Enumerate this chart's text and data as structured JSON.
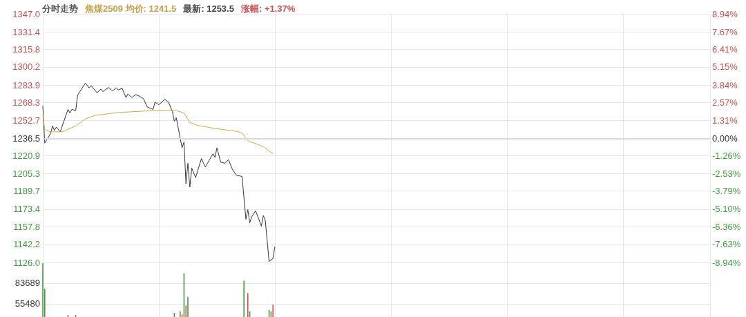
{
  "chart_data": [
    {
      "type": "line",
      "title": "分时走势",
      "annotations": [
        "焦煤2509 均价: 1241.5",
        "最新: 1253.5",
        "涨幅: +1.37%"
      ],
      "categories": [
        null,
        null,
        null,
        null,
        null,
        null,
        null,
        null,
        null,
        null,
        null,
        null,
        null,
        null,
        null,
        null,
        null,
        null,
        null,
        null,
        null,
        null,
        null,
        null,
        null,
        null,
        null,
        null,
        null,
        null,
        null,
        null,
        null,
        null,
        null,
        null,
        null,
        null,
        null,
        null,
        null,
        null,
        null,
        null,
        null,
        null,
        null,
        null,
        null,
        null,
        null,
        null,
        null,
        null,
        null,
        null,
        null,
        null,
        null,
        null,
        null,
        null,
        null,
        null,
        null,
        null,
        null,
        null,
        null,
        null,
        null,
        null,
        null,
        null,
        null,
        null,
        null,
        null,
        null,
        null,
        null,
        null,
        null,
        null,
        null,
        null,
        null,
        null,
        null,
        null,
        null,
        null,
        null,
        null,
        null,
        null,
        null,
        null,
        null,
        null,
        null,
        null,
        null,
        null,
        null,
        null,
        null,
        null,
        null,
        null,
        null,
        null,
        null,
        null,
        null,
        null,
        null,
        null,
        null,
        null,
        null,
        null,
        null,
        null,
        null,
        null,
        null,
        null,
        null,
        null,
        null,
        null,
        null,
        null,
        null,
        null,
        null,
        null,
        null,
        null,
        null,
        null,
        null,
        null,
        null,
        null,
        null,
        null,
        null,
        null,
        null,
        null,
        null,
        null,
        null,
        null,
        null,
        null,
        null,
        null,
        null,
        null,
        null,
        null,
        null,
        null,
        null,
        null,
        null,
        null,
        null,
        null,
        null,
        null,
        null,
        null,
        null,
        null,
        null,
        null,
        null,
        null,
        null,
        null,
        null,
        null,
        null,
        null,
        null,
        null,
        null,
        null,
        null,
        null,
        null,
        null,
        null,
        null,
        null,
        null,
        null,
        null,
        null,
        null,
        null,
        null,
        null,
        null,
        null,
        null,
        null,
        null,
        null,
        null,
        null,
        null,
        null,
        null,
        null,
        null,
        null,
        null,
        null,
        null,
        null,
        null,
        null,
        null,
        null,
        null,
        null,
        null,
        null,
        null,
        null,
        null,
        null,
        null,
        null,
        null,
        null,
        null,
        null,
        null,
        null,
        null,
        null,
        null,
        null,
        null,
        null,
        null,
        null,
        null,
        null,
        null,
        null,
        null,
        null,
        null,
        null,
        null,
        null,
        null,
        null,
        null,
        null,
        null,
        null,
        null,
        null,
        null,
        null,
        null,
        null,
        null,
        null,
        null,
        null,
        null,
        null,
        null,
        null,
        null,
        null,
        null,
        null,
        null,
        null,
        null,
        null,
        null,
        null,
        null,
        null,
        null,
        null,
        null,
        null,
        null,
        null,
        null,
        null,
        null,
        null,
        null,
        null,
        null,
        null,
        null,
        null,
        null,
        null,
        null,
        null,
        null,
        null,
        null,
        null,
        null,
        null,
        null,
        null,
        null,
        null,
        null,
        null,
        null,
        null,
        null,
        null,
        null,
        null,
        null,
        null,
        null,
        null,
        null,
        null,
        null,
        null,
        null,
        null,
        null,
        null,
        null
      ],
      "series": [
        {
          "color": "#333333",
          "values": [
            1265.5,
            1232.3,
            null,
            null,
            1240.8,
            1247.5,
            1243.7,
            1246.6,
            null,
            1242.3,
            null,
            null,
            null,
            1262.3,
            1259.1,
            1262.3,
            null,
            1261.3,
            1275,
            null,
            1280.4,
            null,
            1285.6,
            null,
            1281.4,
            1283.5,
            null,
            null,
            1277.1,
            null,
            1280.4,
            1278.2,
            null,
            null,
            1281.8,
            null,
            1278.9,
            null,
            1281.4,
            1279.7,
            null,
            1281,
            null,
            1272.9,
            1276.1,
            null,
            1272.9,
            null,
            1275.5,
            null,
            1274,
            null,
            1271.9,
            null,
            1264.4,
            null,
            null,
            1262.3,
            1268.7,
            null,
            1266.5,
            null,
            null,
            1271.2,
            null,
            1268.7,
            null,
            1260.2,
            1251.7,
            1254.9,
            null,
            1236.9,
            1228,
            1233.3,
            1196.2,
            1214.3,
            1193.1,
            1210,
            null,
            1201.6,
            null,
            null,
            1218.5,
            null,
            1211,
            null,
            null,
            null,
            1222.8,
            1219.6,
            1228,
            null,
            1215.3,
            null,
            1214.3,
            null,
            1217.5,
            null,
            1209,
            null,
            1203.7,
            null,
            null,
            1202.6,
            null,
            1164.5,
            1173,
            1161.3,
            1166.6,
            null,
            1171.9,
            1167.7,
            null,
            1158.3,
            1167.8,
            1163.5,
            null,
            1126.8,
            null,
            1129.6,
            1140.1,
            null,
            null,
            null,
            null,
            null,
            null,
            null,
            null,
            null,
            null,
            null,
            null,
            null,
            null,
            null,
            null,
            null,
            null,
            null,
            null,
            null,
            null,
            null,
            null,
            null,
            null,
            null,
            null,
            null,
            null,
            null,
            null,
            null,
            null,
            null,
            null,
            null,
            null,
            null,
            null,
            null,
            null,
            null,
            null,
            null,
            null,
            null,
            null,
            null,
            null,
            null,
            null,
            null,
            null,
            null,
            null,
            null,
            null,
            null,
            null,
            null,
            null,
            null,
            null,
            null,
            null,
            null,
            null,
            null,
            null,
            null,
            null,
            null,
            null,
            null,
            null,
            null,
            null,
            null,
            null,
            null,
            null,
            null,
            null,
            null,
            null,
            null,
            null,
            null,
            null,
            null,
            null,
            null,
            null,
            null,
            null,
            null,
            null,
            null,
            null,
            null,
            null,
            null,
            null,
            null,
            null,
            null,
            null,
            null,
            null,
            null,
            null,
            null,
            null,
            null,
            null,
            null,
            null,
            null,
            null,
            null,
            null,
            null,
            null,
            null,
            null,
            null,
            null,
            null,
            null,
            null,
            null,
            null,
            null,
            null,
            null,
            null,
            null,
            null,
            null,
            null,
            null,
            null,
            null,
            null,
            null,
            null,
            null,
            null,
            null,
            null,
            null,
            null,
            null,
            null,
            null,
            null,
            null,
            null,
            null,
            null,
            null,
            null,
            null,
            null,
            null,
            null,
            null,
            null,
            null,
            null,
            null,
            null,
            null,
            null,
            null,
            null,
            null,
            null,
            null,
            null,
            null,
            null,
            null,
            null,
            null,
            null,
            null,
            null,
            null,
            null,
            null,
            null,
            null,
            null,
            null,
            null,
            null,
            null,
            null,
            null,
            null,
            null,
            null,
            null,
            null,
            null,
            null,
            null,
            null,
            null,
            null,
            null,
            null,
            null,
            null,
            null,
            null,
            null,
            null,
            null,
            null,
            null,
            null,
            null
          ]
        },
        {
          "color": "#d9a443",
          "values": [
            1258.1,
            1244.3,
            null,
            null,
            1242.3,
            null,
            null,
            null,
            null,
            null,
            1242.3,
            null,
            null,
            null,
            1245.3,
            null,
            null,
            1247.5,
            null,
            null,
            null,
            null,
            1253.8,
            null,
            null,
            null,
            null,
            1257,
            null,
            null,
            null,
            null,
            null,
            null,
            null,
            null,
            null,
            null,
            null,
            1259.5,
            null,
            null,
            null,
            null,
            null,
            null,
            null,
            null,
            null,
            null,
            null,
            null,
            1260.8,
            null,
            null,
            null,
            null,
            null,
            null,
            null,
            null,
            null,
            null,
            null,
            1261.4,
            null,
            null,
            null,
            null,
            1261.3,
            null,
            null,
            null,
            1259.1,
            null,
            null,
            1250.7,
            null,
            null,
            null,
            1248.1,
            null,
            null,
            null,
            null,
            null,
            null,
            null,
            null,
            1245.3,
            null,
            null,
            null,
            null,
            null,
            null,
            null,
            null,
            null,
            null,
            null,
            1242.6,
            null,
            1241.1,
            null,
            null,
            1234.4,
            null,
            null,
            null,
            null,
            1231.2,
            null,
            null,
            1229.1,
            null,
            null,
            null,
            null,
            1222.8,
            null,
            null,
            null,
            null,
            null,
            null,
            null,
            null,
            null,
            null,
            null,
            null,
            null,
            null,
            null,
            null,
            null,
            null,
            null,
            null,
            null,
            null,
            null,
            null,
            null,
            null,
            null,
            null,
            null,
            null,
            null,
            null,
            null,
            null,
            null,
            null,
            null,
            null,
            null,
            null,
            null,
            null,
            null,
            null,
            null,
            null,
            null,
            null,
            null,
            null,
            null,
            null,
            null,
            null,
            null,
            null,
            null,
            null,
            null,
            null,
            null,
            null,
            null,
            null,
            null,
            null,
            null,
            null,
            null,
            null,
            null,
            null,
            null,
            null,
            null,
            null,
            null,
            null,
            null,
            null,
            null,
            null,
            null,
            null,
            null,
            null,
            null,
            null,
            null,
            null,
            null,
            null,
            null,
            null,
            null,
            null,
            null,
            null,
            null,
            null,
            null,
            null,
            null,
            null,
            null,
            null,
            null,
            null,
            null,
            null,
            null,
            null,
            null,
            null,
            null,
            null,
            null,
            null,
            null,
            null,
            null,
            null,
            null,
            null,
            null,
            null,
            null,
            null,
            null,
            null,
            null,
            null,
            null,
            null,
            null,
            null,
            null,
            null,
            null,
            null,
            null,
            null,
            null,
            null,
            null,
            null,
            null,
            null,
            null,
            null,
            null,
            null,
            null,
            null,
            null,
            null,
            null,
            null,
            null,
            null,
            null,
            null,
            null,
            null,
            null,
            null,
            null,
            null,
            null,
            null,
            null,
            null,
            null,
            null,
            null,
            null,
            null,
            null,
            null,
            null,
            null,
            null,
            null,
            null,
            null,
            null,
            null,
            null,
            null,
            null,
            null,
            null,
            null,
            null,
            null,
            null,
            null,
            null,
            null,
            null,
            null,
            null,
            null,
            null,
            null,
            null,
            null,
            null,
            null,
            null,
            null,
            null,
            null,
            null,
            null,
            null,
            null,
            null,
            null,
            null,
            null,
            null,
            null,
            null,
            null,
            null
          ]
        }
      ],
      "ylim": [
        1126,
        1347
      ],
      "yticks": [
        {
          "value": 1347,
          "label": "1347.0"
        },
        {
          "value": 1331.4,
          "label": "1331.4"
        },
        {
          "value": 1315.8,
          "label": "1315.8"
        },
        {
          "value": 1300.2,
          "label": "1300.2"
        },
        {
          "value": 1283.9,
          "label": "1283.9"
        },
        {
          "value": 1268.3,
          "label": "1268.3"
        },
        {
          "value": 1252.7,
          "label": "1252.7"
        },
        {
          "value": 1236.5,
          "label": "1236.5"
        },
        {
          "value": 1220.9,
          "label": "1220.9"
        },
        {
          "value": 1205.3,
          "label": "1205.3"
        },
        {
          "value": 1189.7,
          "label": "1189.7"
        },
        {
          "value": 1173.4,
          "label": "1173.4"
        },
        {
          "value": 1157.8,
          "label": "1157.8"
        },
        {
          "value": 1142.2,
          "label": "1142.2"
        },
        {
          "value": 1126,
          "label": "1126.0"
        }
      ],
      "y2lim": [
        -8.94,
        8.94
      ],
      "y2ticks": [
        {
          "value": 8.94,
          "label": "8.94%"
        },
        {
          "value": 7.67,
          "label": "7.67%"
        },
        {
          "value": 6.41,
          "label": "6.41%"
        },
        {
          "value": 5.15,
          "label": "5.15%"
        },
        {
          "value": 3.84,
          "label": "3.84%"
        },
        {
          "value": 2.57,
          "label": "2.57%"
        },
        {
          "value": 1.31,
          "label": "1.31%"
        },
        {
          "value": 0,
          "label": "0.00%"
        },
        {
          "value": -1.26,
          "label": "-1.26%"
        },
        {
          "value": -2.53,
          "label": "-2.53%"
        },
        {
          "value": -3.79,
          "label": "-3.79%"
        },
        {
          "value": -5.1,
          "label": "-5.10%"
        },
        {
          "value": -6.36,
          "label": "-6.36%"
        },
        {
          "value": -7.63,
          "label": "-7.63%"
        },
        {
          "value": -8.94,
          "label": "-8.94%"
        }
      ],
      "ref_lines": [
        {
          "axis": "y",
          "value": 1236.5
        }
      ],
      "grid": true,
      "line_style": "solid",
      "tick_labels": "y"
    },
    {
      "type": "bar",
      "categories": [
        null,
        null,
        null,
        null,
        null,
        null,
        null,
        null,
        null,
        null,
        null,
        null,
        null,
        null,
        null,
        null,
        null,
        null,
        null,
        null,
        null,
        null,
        null,
        null,
        null,
        null,
        null,
        null,
        null,
        null,
        null,
        null,
        null,
        null,
        null,
        null,
        null,
        null,
        null,
        null,
        null,
        null,
        null,
        null,
        null,
        null,
        null,
        null,
        null,
        null,
        null,
        null,
        null,
        null,
        null,
        null,
        null,
        null,
        null,
        null,
        null,
        null,
        null,
        null,
        null,
        null,
        null,
        null,
        null,
        null,
        null,
        null,
        null,
        null,
        null,
        null,
        null,
        null,
        null,
        null,
        null,
        null,
        null,
        null,
        null,
        null,
        null,
        null,
        null,
        null,
        null,
        null,
        null,
        null,
        null,
        null,
        null,
        null,
        null,
        null,
        null,
        null,
        null,
        null,
        null,
        null,
        null,
        null,
        null,
        null,
        null,
        null,
        null,
        null,
        null,
        null,
        null,
        null,
        null,
        null,
        null,
        null,
        null,
        null,
        null,
        null,
        null,
        null,
        null,
        null,
        null,
        null,
        null,
        null,
        null,
        null,
        null,
        null,
        null,
        null,
        null,
        null,
        null,
        null,
        null,
        null,
        null,
        null,
        null,
        null,
        null,
        null,
        null,
        null,
        null,
        null,
        null,
        null,
        null,
        null,
        null,
        null,
        null,
        null,
        null,
        null,
        null,
        null,
        null,
        null,
        null,
        null,
        null,
        null,
        null,
        null,
        null,
        null,
        null,
        null,
        null,
        null,
        null,
        null,
        null,
        null,
        null,
        null,
        null,
        null,
        null,
        null,
        null,
        null,
        null,
        null,
        null,
        null,
        null,
        null,
        null,
        null,
        null,
        null,
        null,
        null,
        null,
        null,
        null,
        null,
        null,
        null,
        null,
        null,
        null,
        null,
        null,
        null,
        null,
        null,
        null,
        null,
        null,
        null,
        null,
        null,
        null,
        null,
        null,
        null,
        null,
        null,
        null,
        null,
        null,
        null,
        null,
        null,
        null,
        null,
        null,
        null,
        null,
        null,
        null,
        null,
        null,
        null,
        null,
        null,
        null,
        null,
        null,
        null,
        null,
        null,
        null,
        null,
        null,
        null,
        null,
        null,
        null,
        null,
        null,
        null,
        null,
        null,
        null,
        null,
        null,
        null,
        null,
        null,
        null,
        null,
        null,
        null,
        null,
        null,
        null,
        null,
        null,
        null,
        null,
        null,
        null,
        null,
        null,
        null,
        null,
        null,
        null,
        null,
        null,
        null,
        null,
        null,
        null,
        null,
        null,
        null,
        null,
        null,
        null,
        null,
        null,
        null,
        null,
        null,
        null,
        null,
        null,
        null,
        null,
        null,
        null,
        null,
        null,
        null,
        null,
        null,
        null,
        null,
        null,
        null,
        null,
        null,
        null,
        null,
        null,
        null,
        null,
        null,
        null,
        null,
        null,
        null,
        null,
        null,
        null,
        null,
        null,
        null,
        null,
        null
      ],
      "series": [
        {
          "color": "#3e9b3e",
          "values": [
            111000,
            76000,
            null,
            null,
            null,
            null,
            null,
            null,
            null,
            null,
            null,
            null,
            null,
            null,
            null,
            null,
            null,
            null,
            null,
            null,
            null,
            null,
            null,
            null,
            null,
            null,
            null,
            null,
            null,
            null,
            null,
            null,
            null,
            null,
            null,
            null,
            null,
            null,
            null,
            null,
            null,
            null,
            null,
            null,
            null,
            null,
            null,
            null,
            null,
            null,
            null,
            null,
            null,
            null,
            null,
            null,
            null,
            null,
            null,
            null,
            null,
            null,
            null,
            null,
            null,
            null,
            null,
            null,
            43000,
            null,
            null,
            45000,
            null,
            97000,
            null,
            65000,
            null,
            null,
            null,
            null,
            null,
            null,
            null,
            null,
            null,
            null,
            null,
            null,
            null,
            null,
            null,
            null,
            null,
            null,
            null,
            null,
            null,
            null,
            null,
            null,
            null,
            null,
            null,
            null,
            87000,
            null,
            null,
            45000,
            null,
            null,
            null,
            null,
            null,
            null,
            null,
            null,
            null,
            47000,
            45000,
            null,
            null,
            null,
            null,
            null,
            null,
            null,
            null,
            null,
            null,
            null,
            null,
            null,
            null,
            null,
            null,
            null,
            null,
            null,
            null,
            null,
            null,
            null,
            null,
            null,
            null,
            null,
            null,
            null,
            null,
            null,
            null,
            null,
            null,
            null,
            null,
            null,
            null,
            null,
            null,
            null,
            null,
            null,
            null,
            null,
            null,
            null,
            null,
            null,
            null,
            null,
            null,
            null,
            null,
            null,
            null,
            null,
            null,
            null,
            null,
            null,
            null,
            null,
            null,
            null,
            null,
            null,
            null,
            null,
            null,
            null,
            null,
            null,
            null,
            null,
            null,
            null,
            null,
            null,
            null,
            null,
            null,
            null,
            null,
            null,
            null,
            null,
            null,
            null,
            null,
            null,
            null,
            null,
            null,
            null,
            null,
            null,
            null,
            null,
            null,
            null,
            null,
            null,
            null,
            null,
            null,
            null,
            null,
            null,
            null,
            null,
            null,
            null,
            null,
            null,
            null,
            null,
            null,
            null,
            null,
            null,
            null,
            null,
            null,
            null,
            null,
            null,
            null,
            null,
            null,
            null,
            null,
            null,
            null,
            null,
            null,
            null,
            null,
            null,
            null,
            null,
            null,
            null,
            null,
            null,
            null,
            null,
            null,
            null,
            null,
            null,
            null,
            null,
            null,
            null,
            null,
            null,
            null,
            null,
            null,
            null,
            null,
            null,
            null,
            null,
            null,
            null,
            null,
            null,
            null,
            null,
            null,
            null,
            null,
            null,
            null,
            null,
            null,
            null,
            null,
            null,
            null,
            null,
            null,
            null,
            null,
            null,
            null,
            null,
            null,
            null,
            null,
            null,
            null,
            null,
            null,
            null,
            null,
            null,
            null,
            null,
            null,
            null,
            null,
            null,
            null,
            null,
            null,
            null,
            null,
            null,
            null,
            null,
            null,
            null,
            null,
            null,
            null,
            null,
            null,
            null,
            null,
            null,
            null,
            null,
            null,
            null
          ]
        },
        {
          "color": "#d0504f",
          "values": [
            null,
            null,
            null,
            null,
            null,
            null,
            null,
            null,
            null,
            null,
            null,
            null,
            null,
            40000,
            null,
            null,
            null,
            40000,
            null,
            null,
            null,
            null,
            null,
            null,
            null,
            null,
            null,
            null,
            null,
            null,
            null,
            null,
            null,
            null,
            null,
            null,
            null,
            null,
            null,
            null,
            null,
            null,
            null,
            null,
            null,
            null,
            null,
            null,
            null,
            null,
            null,
            null,
            null,
            null,
            null,
            null,
            null,
            null,
            null,
            null,
            null,
            null,
            null,
            null,
            null,
            null,
            null,
            null,
            null,
            null,
            null,
            null,
            41000,
            null,
            53000,
            null,
            null,
            null,
            null,
            null,
            null,
            null,
            null,
            null,
            null,
            null,
            null,
            null,
            null,
            null,
            null,
            null,
            null,
            null,
            null,
            null,
            null,
            null,
            null,
            null,
            null,
            null,
            null,
            null,
            null,
            null,
            70000,
            null,
            null,
            null,
            null,
            null,
            null,
            null,
            null,
            null,
            null,
            null,
            null,
            54000,
            null,
            null,
            null,
            null,
            null,
            null,
            null,
            null,
            null,
            null,
            null,
            null,
            null,
            null,
            null,
            null,
            null,
            null,
            null,
            null,
            null,
            null,
            null,
            null,
            null,
            null,
            null,
            null,
            null,
            null,
            null,
            null,
            null,
            null,
            null,
            null,
            null,
            null,
            null,
            null,
            null,
            null,
            null,
            null,
            null,
            null,
            null,
            null,
            null,
            null,
            null,
            null,
            null,
            null,
            null,
            null,
            null,
            null,
            null,
            null,
            null,
            null,
            null,
            null,
            null,
            null,
            null,
            null,
            null,
            null,
            null,
            null,
            null,
            null,
            null,
            null,
            null,
            null,
            null,
            null,
            null,
            null,
            null,
            null,
            null,
            null,
            null,
            null,
            null,
            null,
            null,
            null,
            null,
            null,
            null,
            null,
            null,
            null,
            null,
            null,
            null,
            null,
            null,
            null,
            null,
            null,
            null,
            null,
            null,
            null,
            null,
            null,
            null,
            null,
            null,
            null,
            null,
            null,
            null,
            null,
            null,
            null,
            null,
            null,
            null,
            null,
            null,
            null,
            null,
            null,
            null,
            null,
            null,
            null,
            null,
            null,
            null,
            null,
            null,
            null,
            null,
            null,
            null,
            null,
            null,
            null,
            null,
            null,
            null,
            null,
            null,
            null,
            null,
            null,
            null,
            null,
            null,
            null,
            null,
            null,
            null,
            null,
            null,
            null,
            null,
            null,
            null,
            null,
            null,
            null,
            null,
            null,
            null,
            null,
            null,
            null,
            null,
            null,
            null,
            null,
            null,
            null,
            null,
            null,
            null,
            null,
            null,
            null,
            null,
            null,
            null,
            null,
            null,
            null,
            null,
            null,
            null,
            null,
            null,
            null,
            null,
            null,
            null,
            null,
            null,
            null,
            null,
            null,
            null,
            null,
            null,
            null,
            null,
            null,
            null,
            null,
            null,
            null,
            null,
            null,
            null,
            null,
            null,
            null,
            null,
            null
          ]
        }
      ],
      "ylim": [
        37300,
        112000
      ],
      "yticks": [
        55480,
        83689
      ],
      "grid": true,
      "tick_labels": "y"
    }
  ]
}
